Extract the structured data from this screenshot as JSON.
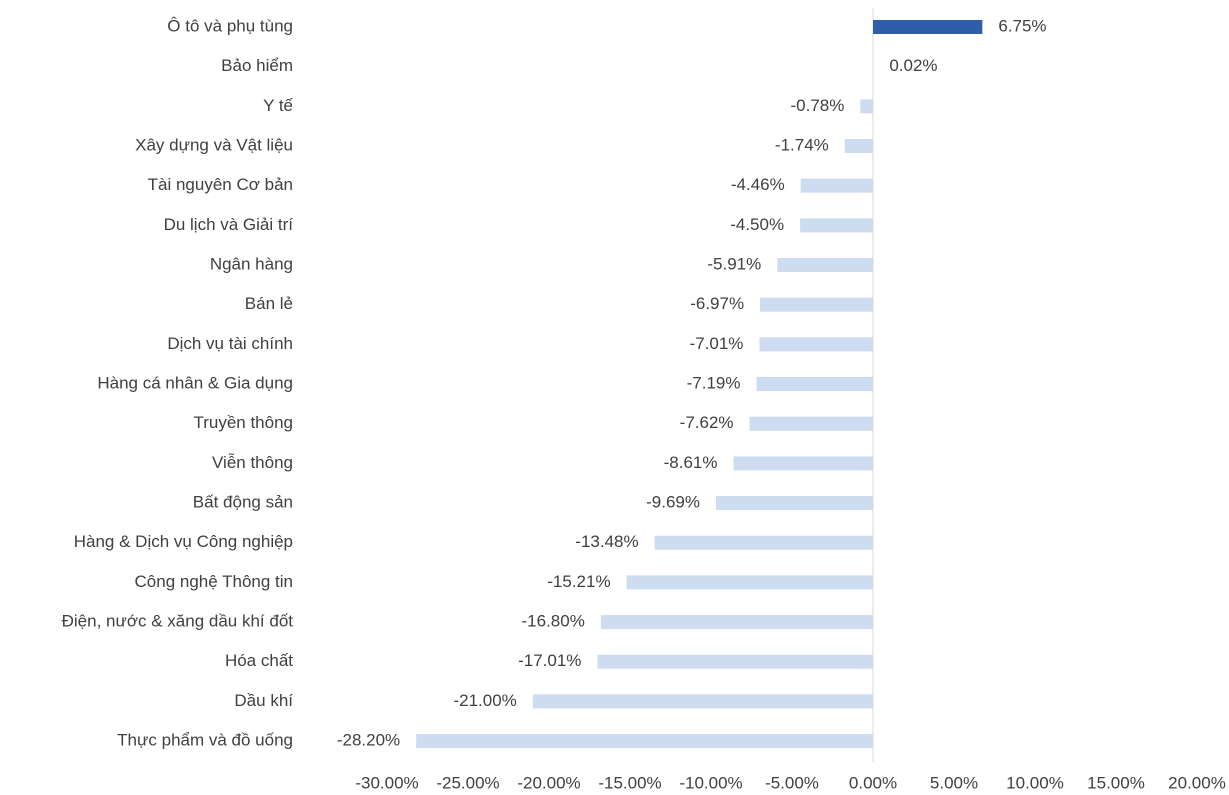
{
  "chart_data": {
    "type": "hbar",
    "categories": [
      "Ô tô và phụ tùng",
      "Bảo hiểm",
      "Y tế",
      "Xây dựng và Vật liệu",
      "Tài nguyên Cơ bản",
      "Du lịch và Giải trí",
      "Ngân hàng",
      "Bán lẻ",
      "Dịch vụ tài chính",
      "Hàng cá nhân & Gia dụng",
      "Truyền thông",
      "Viễn thông",
      "Bất động sản",
      "Hàng & Dịch vụ Công nghiệp",
      "Công nghệ Thông tin",
      "Điện, nước & xăng dầu khí đốt",
      "Hóa chất",
      "Dầu khí",
      "Thực phẩm và đồ uống"
    ],
    "values": [
      6.75,
      0.02,
      -0.78,
      -1.74,
      -4.46,
      -4.5,
      -5.91,
      -6.97,
      -7.01,
      -7.19,
      -7.62,
      -8.61,
      -9.69,
      -13.48,
      -15.21,
      -16.8,
      -17.01,
      -21.0,
      -28.2
    ],
    "value_labels": [
      "6.75%",
      "0.02%",
      "-0.78%",
      "-1.74%",
      "-4.46%",
      "-4.50%",
      "-5.91%",
      "-6.97%",
      "-7.01%",
      "-7.19%",
      "-7.62%",
      "-8.61%",
      "-9.69%",
      "-13.48%",
      "-15.21%",
      "-16.80%",
      "-17.01%",
      "-21.00%",
      "-28.20%"
    ],
    "colors": [
      "#2e5ea8",
      "#cddcf1",
      "#cddcf1",
      "#cddcf1",
      "#cddcf1",
      "#cddcf1",
      "#cddcf1",
      "#cddcf1",
      "#cddcf1",
      "#cddcf1",
      "#cddcf1",
      "#cddcf1",
      "#cddcf1",
      "#cddcf1",
      "#cddcf1",
      "#cddcf1",
      "#cddcf1",
      "#cddcf1",
      "#cddcf1"
    ],
    "xlim": [
      -30,
      20
    ],
    "xticks": [
      {
        "value": -30,
        "label": "-30.00%"
      },
      {
        "value": -25,
        "label": "-25.00%"
      },
      {
        "value": -20,
        "label": "-20.00%"
      },
      {
        "value": -15,
        "label": "-15.00%"
      },
      {
        "value": -10,
        "label": "-10.00%"
      },
      {
        "value": -5,
        "label": "-5.00%"
      },
      {
        "value": 0,
        "label": "0.00%"
      },
      {
        "value": 5,
        "label": "5.00%"
      },
      {
        "value": 10,
        "label": "10.00%"
      },
      {
        "value": 15,
        "label": "15.00%"
      },
      {
        "value": 20,
        "label": "20.00%"
      }
    ],
    "grid": false
  }
}
